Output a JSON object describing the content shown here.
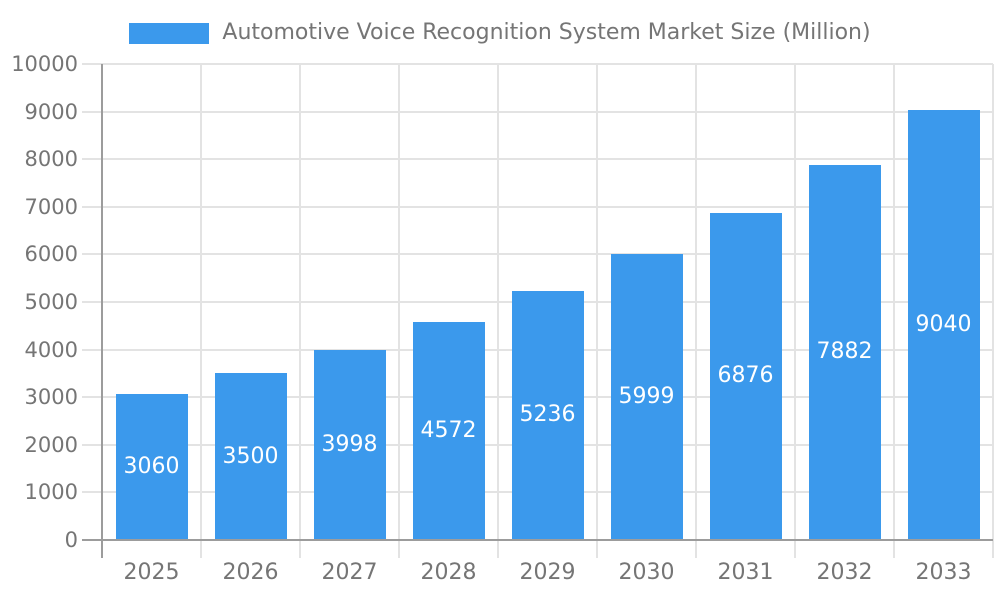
{
  "legend": {
    "label": "Automotive Voice Recognition System Market Size (Million)"
  },
  "chart_data": {
    "type": "bar",
    "title": "Automotive Voice Recognition System Market Size (Million)",
    "categories": [
      "2025",
      "2026",
      "2027",
      "2028",
      "2029",
      "2030",
      "2031",
      "2032",
      "2033"
    ],
    "values": [
      3060,
      3500,
      3998,
      4572,
      5236,
      5999,
      6876,
      7882,
      9040
    ],
    "xlabel": "",
    "ylabel": "",
    "ylim": [
      0,
      10000
    ],
    "ytick_interval": 1000,
    "yticks": [
      0,
      1000,
      2000,
      3000,
      4000,
      5000,
      6000,
      7000,
      8000,
      9000,
      10000
    ],
    "grid": true,
    "legend_position": "top-center",
    "value_label_position": "inside-center",
    "colors": {
      "bar": "#3B99EC",
      "value_label": "#FFFFFF",
      "tick_label": "#757575",
      "legend_text": "#757575",
      "grid_line": "#E3E3E3",
      "axis_line": "#9C9C9C",
      "background": "#FFFFFF"
    }
  }
}
